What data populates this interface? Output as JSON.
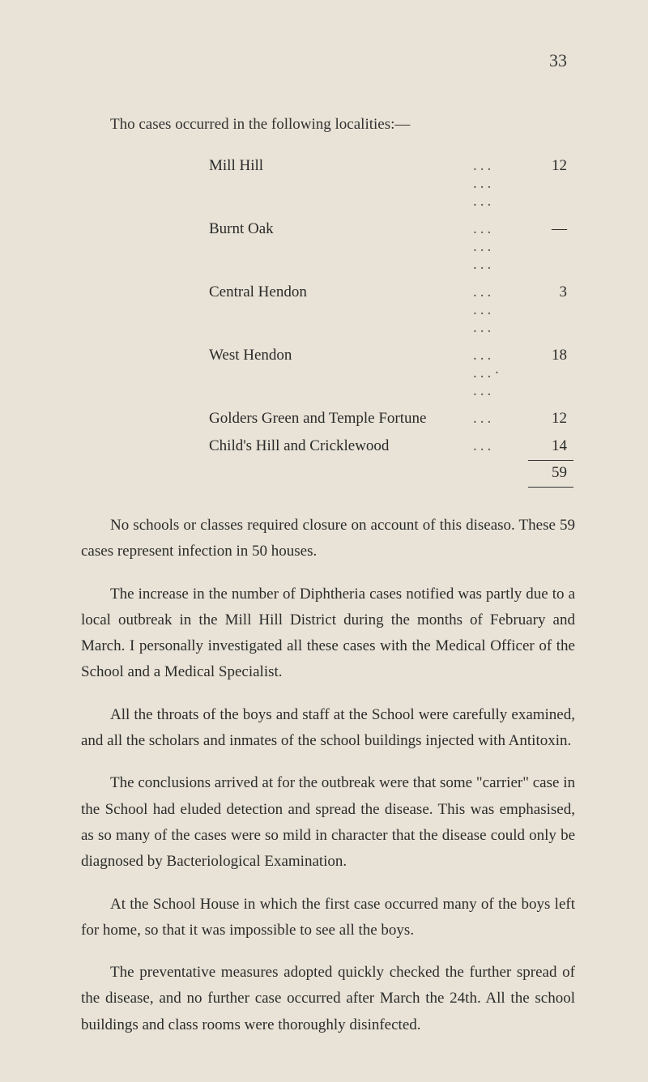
{
  "page_number": "33",
  "intro": "Tho cases occurred in the following localities:—",
  "localities": [
    {
      "name": "Mill Hill",
      "dots": "...   ...   ...",
      "value": "12"
    },
    {
      "name": "Burnt Oak",
      "dots": "...   ...   ...",
      "value": "—"
    },
    {
      "name": "Central Hendon",
      "dots": "...   ...   ...",
      "value": "3"
    },
    {
      "name": "West Hendon",
      "dots": "...   ...·   ...",
      "value": "18"
    },
    {
      "name": "Golders Green and Temple Fortune",
      "dots": "...",
      "value": "12"
    },
    {
      "name": "Child's Hill and Cricklewood",
      "dots": "...",
      "value": "14"
    }
  ],
  "total": "59",
  "paragraphs": [
    "No schools or classes required closure on account of this diseaso. These 59 cases represent infection in 50 houses.",
    "The increase in the number of Diphtheria cases notified was partly due to a local outbreak in the Mill Hill District during the months of February and March. I personally investigated all these cases with the Medical Officer of the School and a Medical Specialist.",
    "All the throats of the boys and staff at the School were carefully examined, and all the scholars and inmates of the school buildings injected with Antitoxin.",
    "The conclusions arrived at for the outbreak were that some \"carrier\" case in the School had eluded detection and spread the disease. This was emphasised, as so many of the cases were so mild in character that the disease could only be diagnosed by Bacteriological Examination.",
    "At the School House in which the first case occurred many of the boys left for home, so that it was impossible to see all the boys.",
    "The preventative measures adopted quickly checked the further spread of the disease, and no further case occurred after March the 24th. All the school buildings and class rooms were thoroughly disinfected."
  ]
}
